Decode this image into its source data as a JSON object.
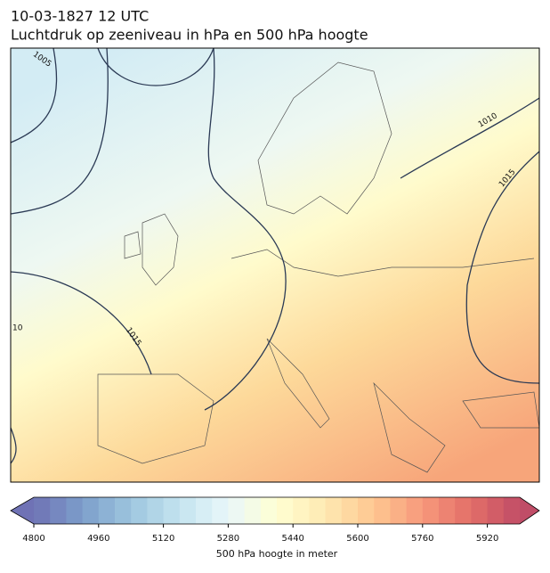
{
  "header": {
    "title": "10-03-1827 12 UTC",
    "subtitle": "Luchtdruk op zeeniveau in hPa en 500 hPa hoogte"
  },
  "map": {
    "contour_labels": [
      "1005",
      "1010",
      "1015",
      "1015",
      "10"
    ]
  },
  "colorbar": {
    "range": [
      4800,
      6000
    ],
    "ticks": [
      4800,
      4960,
      5120,
      5280,
      5440,
      5600,
      5760,
      5920
    ],
    "label": "500 hPa hoogte in meter"
  }
}
